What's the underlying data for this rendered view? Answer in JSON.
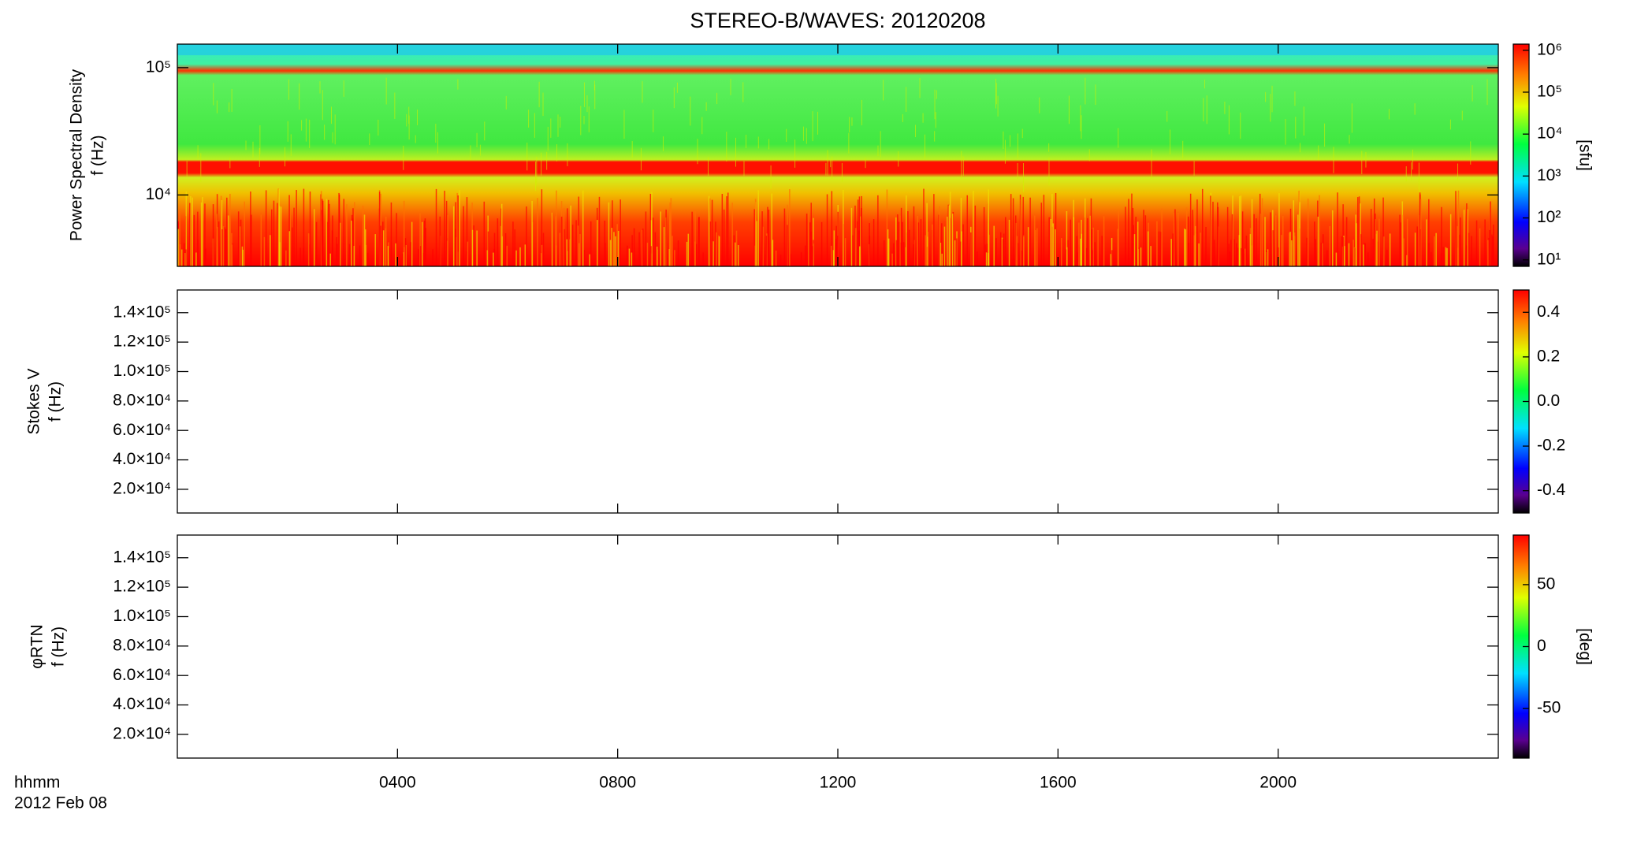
{
  "title": "STEREO-B/WAVES: 20120208",
  "time_axis": {
    "label": "hhmm",
    "date": "2012 Feb 08",
    "xlim": [
      0,
      24
    ],
    "xticks": [
      {
        "value": 4,
        "label": "0400"
      },
      {
        "value": 8,
        "label": "0800"
      },
      {
        "value": 12,
        "label": "1200"
      },
      {
        "value": 16,
        "label": "1600"
      },
      {
        "value": 20,
        "label": "2000"
      }
    ]
  },
  "chart_data": [
    {
      "type": "spectrogram",
      "ylabel": [
        "Power Spectral Density",
        "f (Hz)"
      ],
      "ylog": true,
      "ylim": [
        2750,
        153000
      ],
      "yticks": [
        {
          "value": 10000,
          "label": "10⁴"
        },
        {
          "value": 100000,
          "label": "10⁵"
        }
      ],
      "colorbar": {
        "label": "[sfu]",
        "log": true,
        "ylim": [
          7,
          1400000
        ],
        "yticks": [
          {
            "value": 10,
            "label": "10¹"
          },
          {
            "value": 100,
            "label": "10²"
          },
          {
            "value": 1000,
            "label": "10³"
          },
          {
            "value": 10000,
            "label": "10⁴"
          },
          {
            "value": 100000,
            "label": "10⁵"
          },
          {
            "value": 1000000,
            "label": "10⁶"
          }
        ]
      }
    },
    {
      "type": "empty",
      "ylabel": [
        "Stokes V",
        "f (Hz)"
      ],
      "ylog": false,
      "ylim": [
        3900,
        155400
      ],
      "yticks": [
        {
          "value": 20000,
          "label": "2.0×10⁴"
        },
        {
          "value": 40000,
          "label": "4.0×10⁴"
        },
        {
          "value": 60000,
          "label": "6.0×10⁴"
        },
        {
          "value": 80000,
          "label": "8.0×10⁴"
        },
        {
          "value": 100000,
          "label": "1.0×10⁵"
        },
        {
          "value": 120000,
          "label": "1.2×10⁵"
        },
        {
          "value": 140000,
          "label": "1.4×10⁵"
        }
      ],
      "colorbar": {
        "log": false,
        "ylim": [
          -0.5,
          0.5
        ],
        "yticks": [
          {
            "value": -0.4,
            "label": "-0.4"
          },
          {
            "value": -0.2,
            "label": "-0.2"
          },
          {
            "value": 0,
            "label": "0.0"
          },
          {
            "value": 0.2,
            "label": "0.2"
          },
          {
            "value": 0.4,
            "label": "0.4"
          }
        ]
      }
    },
    {
      "type": "empty",
      "ylabel": [
        "φRTN",
        "f (Hz)"
      ],
      "ylog": false,
      "ylim": [
        3900,
        155400
      ],
      "yticks": [
        {
          "value": 20000,
          "label": "2.0×10⁴"
        },
        {
          "value": 40000,
          "label": "4.0×10⁴"
        },
        {
          "value": 60000,
          "label": "6.0×10⁴"
        },
        {
          "value": 80000,
          "label": "8.0×10⁴"
        },
        {
          "value": 100000,
          "label": "1.0×10⁵"
        },
        {
          "value": 120000,
          "label": "1.2×10⁵"
        },
        {
          "value": 140000,
          "label": "1.4×10⁵"
        }
      ],
      "colorbar": {
        "label": "[deg]",
        "log": false,
        "ylim": [
          -90,
          90
        ],
        "yticks": [
          -50,
          0,
          50
        ]
      }
    }
  ]
}
